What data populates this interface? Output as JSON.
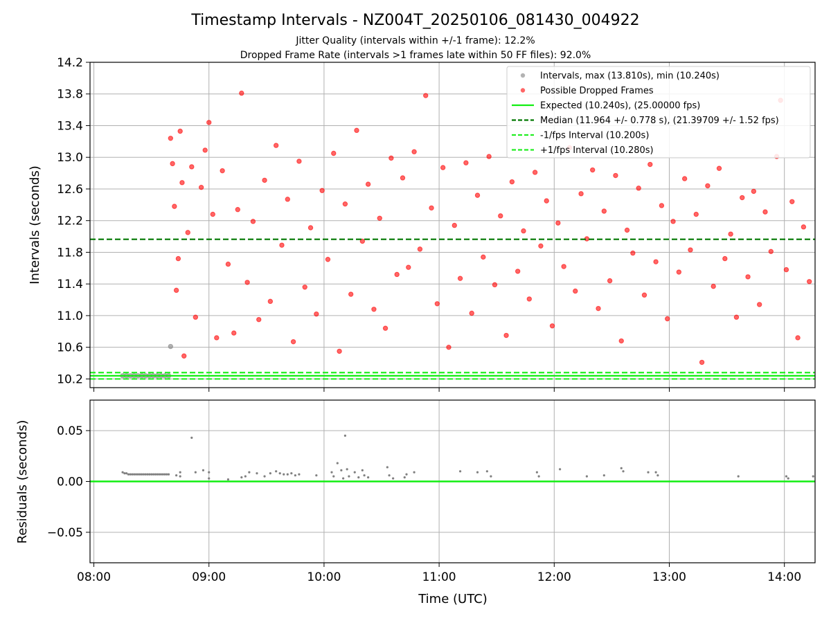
{
  "figure": {
    "title": "Timestamp Intervals - NZ004T_20250106_081430_004922",
    "subtitle_1": "Jitter Quality (intervals within +/-1 frame): 12.2%",
    "subtitle_2": "Dropped Frame Rate (intervals >1 frames late within 50 FF files): 92.0%"
  },
  "colors": {
    "intervals": "#808080",
    "dropped": "#ff0000",
    "expected": "#11ee11",
    "median": "#007700",
    "fps_interval": "#22ee22",
    "residual": "#808080",
    "grid": "#b0b0b0"
  },
  "chart_data": [
    {
      "type": "scatter",
      "xlabel": "",
      "ylabel": "Intervals (seconds)",
      "xlim": [
        "07:58",
        "14:16"
      ],
      "ylim": [
        10.09,
        14.2
      ],
      "y_ticks": [
        "10.2",
        "10.6",
        "11.0",
        "11.4",
        "11.8",
        "12.2",
        "12.6",
        "13.0",
        "13.4",
        "13.8",
        "14.2"
      ],
      "grid": true,
      "legend_position": "upper right",
      "legend": [
        "Intervals, max (13.810s), min (10.240s)",
        "Possible Dropped Frames",
        "Expected (10.240s), (25.00000 fps)",
        "Median (11.964 +/- 0.778 s), (21.39709 +/- 1.52 fps)",
        "-1/fps Interval (10.200s)",
        "+1/fps Interval (10.280s)"
      ],
      "reference_lines": {
        "expected": 10.24,
        "median": 11.964,
        "minus_1_fps": 10.2,
        "plus_1_fps": 10.28
      },
      "series": [
        {
          "name": "Intervals, max (13.810s), min (10.240s)",
          "points": [
            [
              "08:15",
              10.24
            ],
            [
              "08:17",
              10.24
            ],
            [
              "08:19",
              10.24
            ],
            [
              "08:21",
              10.24
            ],
            [
              "08:23",
              10.24
            ],
            [
              "08:25",
              10.24
            ],
            [
              "08:27",
              10.24
            ],
            [
              "08:29",
              10.24
            ],
            [
              "08:31",
              10.24
            ],
            [
              "08:33",
              10.24
            ],
            [
              "08:35",
              10.24
            ],
            [
              "08:37",
              10.24
            ],
            [
              "08:39",
              10.24
            ],
            [
              "08:40",
              10.61
            ]
          ]
        },
        {
          "name": "Possible Dropped Frames",
          "points": [
            [
              "08:40",
              13.24
            ],
            [
              "08:41",
              12.92
            ],
            [
              "08:42",
              12.38
            ],
            [
              "08:43",
              11.32
            ],
            [
              "08:44",
              11.72
            ],
            [
              "08:45",
              13.33
            ],
            [
              "08:46",
              12.68
            ],
            [
              "08:47",
              10.49
            ],
            [
              "08:49",
              12.05
            ],
            [
              "08:51",
              12.88
            ],
            [
              "08:53",
              10.98
            ],
            [
              "08:56",
              12.62
            ],
            [
              "08:58",
              13.09
            ],
            [
              "09:00",
              13.44
            ],
            [
              "09:02",
              12.28
            ],
            [
              "09:04",
              10.72
            ],
            [
              "09:07",
              12.83
            ],
            [
              "09:10",
              11.65
            ],
            [
              "09:13",
              10.78
            ],
            [
              "09:15",
              12.34
            ],
            [
              "09:17",
              13.81
            ],
            [
              "09:20",
              11.42
            ],
            [
              "09:23",
              12.19
            ],
            [
              "09:26",
              10.95
            ],
            [
              "09:29",
              12.71
            ],
            [
              "09:32",
              11.18
            ],
            [
              "09:35",
              13.15
            ],
            [
              "09:38",
              11.89
            ],
            [
              "09:41",
              12.47
            ],
            [
              "09:44",
              10.67
            ],
            [
              "09:47",
              12.95
            ],
            [
              "09:50",
              11.36
            ],
            [
              "09:53",
              12.11
            ],
            [
              "09:56",
              11.02
            ],
            [
              "09:59",
              12.58
            ],
            [
              "10:02",
              11.71
            ],
            [
              "10:05",
              13.05
            ],
            [
              "10:08",
              10.55
            ],
            [
              "10:11",
              12.41
            ],
            [
              "10:14",
              11.27
            ],
            [
              "10:17",
              13.34
            ],
            [
              "10:20",
              11.94
            ],
            [
              "10:23",
              12.66
            ],
            [
              "10:26",
              11.08
            ],
            [
              "10:29",
              12.23
            ],
            [
              "10:32",
              10.84
            ],
            [
              "10:35",
              12.99
            ],
            [
              "10:38",
              11.52
            ],
            [
              "10:41",
              12.74
            ],
            [
              "10:44",
              11.61
            ],
            [
              "10:47",
              13.07
            ],
            [
              "10:50",
              11.84
            ],
            [
              "10:53",
              13.78
            ],
            [
              "10:56",
              12.36
            ],
            [
              "10:59",
              11.15
            ],
            [
              "11:02",
              12.87
            ],
            [
              "11:05",
              10.6
            ],
            [
              "11:08",
              12.14
            ],
            [
              "11:11",
              11.47
            ],
            [
              "11:14",
              12.93
            ],
            [
              "11:17",
              11.03
            ],
            [
              "11:20",
              12.52
            ],
            [
              "11:23",
              11.74
            ],
            [
              "11:26",
              13.01
            ],
            [
              "11:29",
              11.39
            ],
            [
              "11:32",
              12.26
            ],
            [
              "11:35",
              10.75
            ],
            [
              "11:38",
              12.69
            ],
            [
              "11:41",
              11.56
            ],
            [
              "11:44",
              12.07
            ],
            [
              "11:47",
              11.21
            ],
            [
              "11:50",
              12.81
            ],
            [
              "11:53",
              11.88
            ],
            [
              "11:56",
              12.45
            ],
            [
              "11:59",
              10.87
            ],
            [
              "12:02",
              12.17
            ],
            [
              "12:05",
              11.62
            ],
            [
              "12:08",
              13.12
            ],
            [
              "12:11",
              11.31
            ],
            [
              "12:14",
              12.54
            ],
            [
              "12:17",
              11.97
            ],
            [
              "12:20",
              12.84
            ],
            [
              "12:23",
              11.09
            ],
            [
              "12:26",
              12.32
            ],
            [
              "12:29",
              11.44
            ],
            [
              "12:32",
              12.77
            ],
            [
              "12:35",
              10.68
            ],
            [
              "12:38",
              12.08
            ],
            [
              "12:41",
              11.79
            ],
            [
              "12:44",
              12.61
            ],
            [
              "12:47",
              11.26
            ],
            [
              "12:50",
              12.91
            ],
            [
              "12:53",
              11.68
            ],
            [
              "12:56",
              12.39
            ],
            [
              "12:59",
              10.96
            ],
            [
              "13:02",
              12.19
            ],
            [
              "13:05",
              11.55
            ],
            [
              "13:08",
              12.73
            ],
            [
              "13:11",
              11.83
            ],
            [
              "13:14",
              12.28
            ],
            [
              "13:17",
              10.41
            ],
            [
              "13:20",
              12.64
            ],
            [
              "13:23",
              11.37
            ],
            [
              "13:26",
              12.86
            ],
            [
              "13:29",
              11.72
            ],
            [
              "13:32",
              12.03
            ],
            [
              "13:35",
              10.98
            ],
            [
              "13:38",
              12.49
            ],
            [
              "13:41",
              11.49
            ],
            [
              "13:44",
              12.57
            ],
            [
              "13:47",
              11.14
            ],
            [
              "13:50",
              12.31
            ],
            [
              "13:53",
              11.81
            ],
            [
              "13:56",
              13.01
            ],
            [
              "13:58",
              13.72
            ],
            [
              "14:01",
              11.58
            ],
            [
              "14:04",
              12.44
            ],
            [
              "14:07",
              10.72
            ],
            [
              "14:10",
              12.12
            ],
            [
              "14:13",
              11.43
            ]
          ]
        }
      ]
    },
    {
      "type": "scatter",
      "xlabel": "Time (UTC)",
      "ylabel": "Residuals (seconds)",
      "xlim": [
        "07:58",
        "14:16"
      ],
      "ylim": [
        -0.08,
        0.08
      ],
      "x_ticks": [
        "08:00",
        "09:00",
        "10:00",
        "11:00",
        "12:00",
        "13:00",
        "14:00"
      ],
      "y_ticks": [
        "0.05",
        "0.00",
        "−0.05"
      ],
      "grid": true,
      "zero_line": 0,
      "series": [
        {
          "name": "",
          "points": [
            [
              "08:15",
              0.009
            ],
            [
              "08:16",
              0.008
            ],
            [
              "08:17",
              0.008
            ],
            [
              "08:18",
              0.007
            ],
            [
              "08:19",
              0.007
            ],
            [
              "08:20",
              0.007
            ],
            [
              "08:21",
              0.007
            ],
            [
              "08:22",
              0.007
            ],
            [
              "08:23",
              0.007
            ],
            [
              "08:24",
              0.007
            ],
            [
              "08:25",
              0.007
            ],
            [
              "08:26",
              0.007
            ],
            [
              "08:27",
              0.007
            ],
            [
              "08:28",
              0.007
            ],
            [
              "08:29",
              0.007
            ],
            [
              "08:30",
              0.007
            ],
            [
              "08:31",
              0.007
            ],
            [
              "08:32",
              0.007
            ],
            [
              "08:33",
              0.007
            ],
            [
              "08:34",
              0.007
            ],
            [
              "08:35",
              0.007
            ],
            [
              "08:36",
              0.007
            ],
            [
              "08:37",
              0.007
            ],
            [
              "08:38",
              0.007
            ],
            [
              "08:39",
              0.007
            ],
            [
              "08:43",
              0.006
            ],
            [
              "08:45",
              0.009
            ],
            [
              "08:45",
              0.005
            ],
            [
              "08:51",
              0.043
            ],
            [
              "08:53",
              0.009
            ],
            [
              "08:57",
              0.011
            ],
            [
              "09:00",
              0.009
            ],
            [
              "09:00",
              0.003
            ],
            [
              "09:10",
              0.002
            ],
            [
              "09:17",
              0.004
            ],
            [
              "09:19",
              0.005
            ],
            [
              "09:21",
              0.009
            ],
            [
              "09:25",
              0.008
            ],
            [
              "09:29",
              0.005
            ],
            [
              "09:32",
              0.008
            ],
            [
              "09:35",
              0.01
            ],
            [
              "09:37",
              0.008
            ],
            [
              "09:39",
              0.007
            ],
            [
              "09:41",
              0.007
            ],
            [
              "09:43",
              0.008
            ],
            [
              "09:45",
              0.006
            ],
            [
              "09:47",
              0.007
            ],
            [
              "09:56",
              0.006
            ],
            [
              "10:04",
              0.009
            ],
            [
              "10:05",
              0.005
            ],
            [
              "10:07",
              0.018
            ],
            [
              "10:09",
              0.011
            ],
            [
              "10:10",
              0.003
            ],
            [
              "10:11",
              0.045
            ],
            [
              "10:12",
              0.012
            ],
            [
              "10:13",
              0.005
            ],
            [
              "10:16",
              0.009
            ],
            [
              "10:18",
              0.004
            ],
            [
              "10:20",
              0.011
            ],
            [
              "10:21",
              0.006
            ],
            [
              "10:23",
              0.004
            ],
            [
              "10:33",
              0.014
            ],
            [
              "10:34",
              0.006
            ],
            [
              "10:36",
              0.003
            ],
            [
              "10:42",
              0.004
            ],
            [
              "10:43",
              0.007
            ],
            [
              "10:47",
              0.009
            ],
            [
              "11:11",
              0.01
            ],
            [
              "11:20",
              0.009
            ],
            [
              "11:25",
              0.01
            ],
            [
              "11:27",
              0.005
            ],
            [
              "11:51",
              0.009
            ],
            [
              "11:52",
              0.005
            ],
            [
              "12:03",
              0.012
            ],
            [
              "12:17",
              0.005
            ],
            [
              "12:26",
              0.006
            ],
            [
              "12:35",
              0.013
            ],
            [
              "12:36",
              0.01
            ],
            [
              "12:49",
              0.009
            ],
            [
              "12:53",
              0.009
            ],
            [
              "12:54",
              0.006
            ],
            [
              "13:36",
              0.005
            ],
            [
              "14:01",
              0.005
            ],
            [
              "14:02",
              0.003
            ],
            [
              "14:15",
              0.005
            ]
          ]
        }
      ]
    }
  ]
}
